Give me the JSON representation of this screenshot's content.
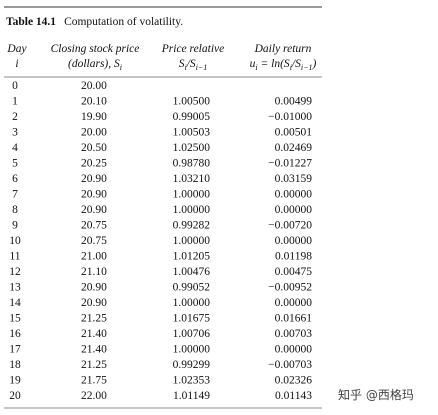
{
  "title": {
    "label": "Table 14.1",
    "text": "Computation of volatility."
  },
  "header": {
    "day": [
      "Day",
      [
        "i"
      ]
    ],
    "price": [
      "Closing stock price",
      [
        "(dollars), S",
        "i"
      ]
    ],
    "relative": [
      "Price relative",
      [
        "S",
        "i",
        "/S",
        "i−1"
      ]
    ],
    "return": [
      "Daily return",
      [
        "u",
        "i",
        " = ln(S",
        "i",
        "/S",
        "i−1",
        ")"
      ]
    ]
  },
  "table": {
    "rows": [
      [
        "0",
        "20.00"
      ],
      [
        "1",
        "20.10",
        "1.00500",
        "0.00499"
      ],
      [
        "2",
        "19.90",
        "0.99005",
        "−0.01000"
      ],
      [
        "3",
        "20.00",
        "1.00503",
        "0.00501"
      ],
      [
        "4",
        "20.50",
        "1.02500",
        "0.02469"
      ],
      [
        "5",
        "20.25",
        "0.98780",
        "−0.01227"
      ],
      [
        "6",
        "20.90",
        "1.03210",
        "0.03159"
      ],
      [
        "7",
        "20.90",
        "1.00000",
        "0.00000"
      ],
      [
        "8",
        "20.90",
        "1.00000",
        "0.00000"
      ],
      [
        "9",
        "20.75",
        "0.99282",
        "−0.00720"
      ],
      [
        "10",
        "20.75",
        "1.00000",
        "0.00000"
      ],
      [
        "11",
        "21.00",
        "1.01205",
        "0.01198"
      ],
      [
        "12",
        "21.10",
        "1.00476",
        "0.00475"
      ],
      [
        "13",
        "20.90",
        "0.99052",
        "−0.00952"
      ],
      [
        "14",
        "20.90",
        "1.00000",
        "0.00000"
      ],
      [
        "15",
        "21.25",
        "1.01675",
        "0.01661"
      ],
      [
        "16",
        "21.40",
        "1.00706",
        "0.00703"
      ],
      [
        "17",
        "21.40",
        "1.00000",
        "0.00000"
      ],
      [
        "18",
        "21.25",
        "0.99299",
        "−0.00703"
      ],
      [
        "19",
        "21.75",
        "1.02353",
        "0.02326"
      ],
      [
        "20",
        "22.00",
        "1.01149",
        "0.01143"
      ]
    ]
  },
  "watermark": "知乎 @西格玛"
}
